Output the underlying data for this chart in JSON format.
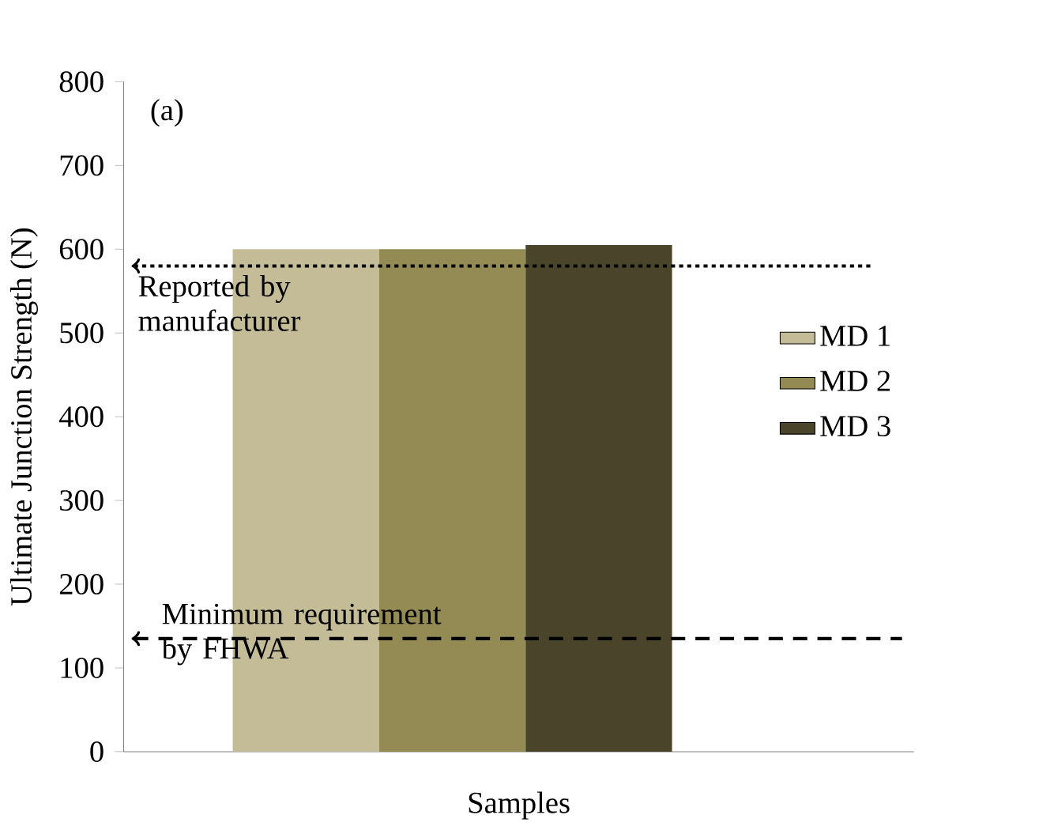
{
  "chart_data": {
    "type": "bar",
    "xlabel": "Samples",
    "ylabel": "Ultimate Junction Strength (N)",
    "categories": [
      null
    ],
    "series": [
      {
        "name": "MD 1",
        "color": "#c4bc96",
        "values": [
          600
        ]
      },
      {
        "name": "MD 2",
        "color": "#948a54",
        "values": [
          600
        ]
      },
      {
        "name": "MD 3",
        "color": "#4a452a",
        "values": [
          605
        ]
      }
    ],
    "ylim": [
      0,
      800
    ],
    "yticks": [
      0,
      100,
      200,
      300,
      400,
      500,
      600,
      700,
      800
    ],
    "grid": false,
    "legend": "right",
    "ref_lines": [
      {
        "axis": "y",
        "value": 580,
        "label": "Reported by manufacturer",
        "line_style": "dotted"
      },
      {
        "axis": "y",
        "value": 135,
        "label": "Minimum requirement by FHWA",
        "line_style": "dashed"
      }
    ],
    "annotations": [
      "(a)"
    ]
  }
}
